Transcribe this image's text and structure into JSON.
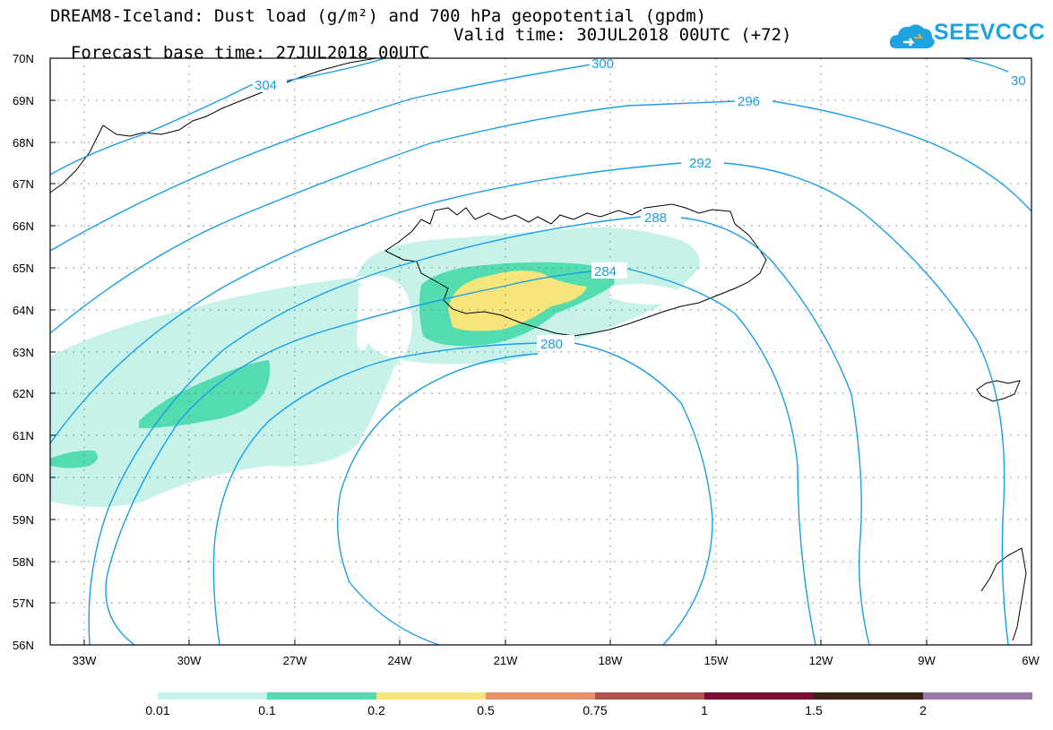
{
  "header": {
    "title_line1": "DREAM8-Iceland: Dust load (g/m²) and 700 hPa geopotential (gpdm)",
    "base_time": "Forecast base time: 27JUL2018 00UTC",
    "valid_time": "Valid time: 30JUL2018 00UTC (+72)"
  },
  "logo": {
    "text": "SEEVCCC",
    "icon": "cloud-icon",
    "color": "#1fa2e0"
  },
  "map": {
    "lat_labels": [
      "70N",
      "69N",
      "68N",
      "67N",
      "66N",
      "65N",
      "64N",
      "63N",
      "62N",
      "61N",
      "60N",
      "59N",
      "58N",
      "57N",
      "56N"
    ],
    "lon_labels": [
      "33W",
      "30W",
      "27W",
      "24W",
      "21W",
      "18W",
      "15W",
      "12W",
      "9W",
      "6W"
    ],
    "contour_labels": [
      "304",
      "300",
      "296",
      "292",
      "288",
      "284",
      "280",
      "30"
    ],
    "contour_color": "#1a9ee6"
  },
  "colorbar": {
    "labels": [
      "0.01",
      "0.1",
      "0.2",
      "0.5",
      "0.75",
      "1",
      "1.5",
      "2"
    ],
    "colors": [
      "#c6f2ea",
      "#52dcb0",
      "#f5e57a",
      "#e8916a",
      "#b0524f",
      "#7a0f33",
      "#3b2318",
      "#9a78a8"
    ]
  }
}
